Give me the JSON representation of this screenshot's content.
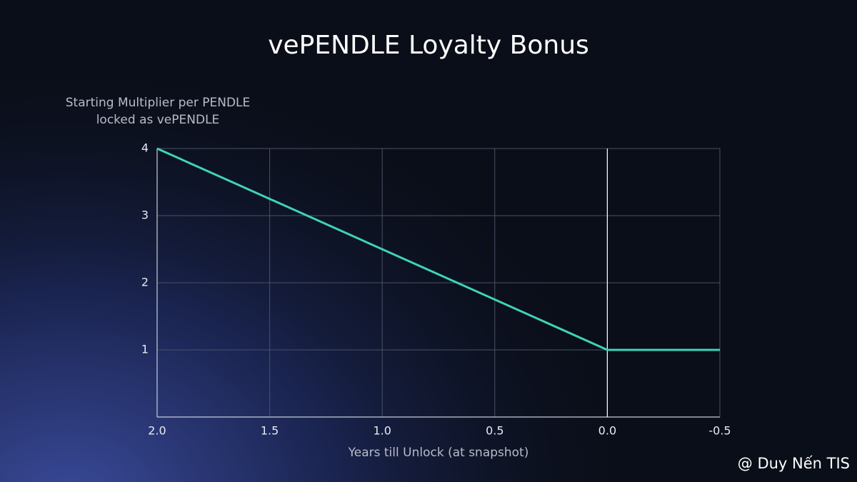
{
  "chart_data": {
    "type": "line",
    "title": "vePENDLE Loyalty Bonus",
    "ylabel": [
      "Starting Multiplier per PENDLE",
      "locked as vePENDLE"
    ],
    "xlabel": "Years till Unlock (at snapshot)",
    "x": [
      2,
      0,
      -0.5
    ],
    "series": [
      {
        "name": "Starting Multiplier",
        "color": "#3fd3b8",
        "values": [
          4,
          1,
          1
        ]
      }
    ],
    "xlim": [
      2,
      -0.5
    ],
    "xticks": [
      {
        "value": 2,
        "label": "2.0"
      },
      1.5,
      {
        "value": 1,
        "label": "1.0"
      },
      0.5,
      {
        "value": 0,
        "label": "0.0"
      },
      -0.5
    ],
    "ylim": [
      0,
      4
    ],
    "yticks": [
      1,
      2,
      3,
      4
    ],
    "grid": true,
    "x_reference_line": 0,
    "watermark": "@ Duy Nến TIS"
  }
}
